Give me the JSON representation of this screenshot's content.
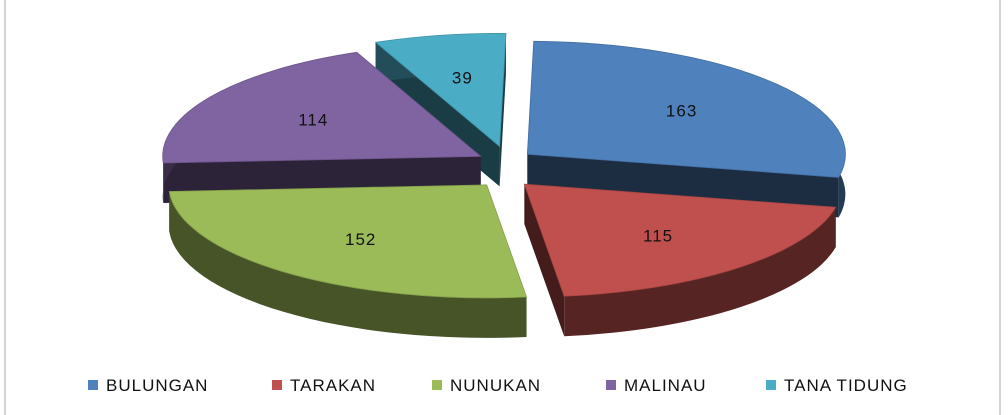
{
  "chart_data": {
    "type": "pie",
    "categories": [
      "BULUNGAN",
      "TARAKAN",
      "NUNUKAN",
      "MALINAU",
      "TANA TIDUNG"
    ],
    "values": [
      163,
      115,
      152,
      114,
      39
    ],
    "colors": [
      "#4f81bd",
      "#c0504d",
      "#9bbb59",
      "#8064a2",
      "#4bacc6"
    ],
    "legend": "bottom"
  }
}
